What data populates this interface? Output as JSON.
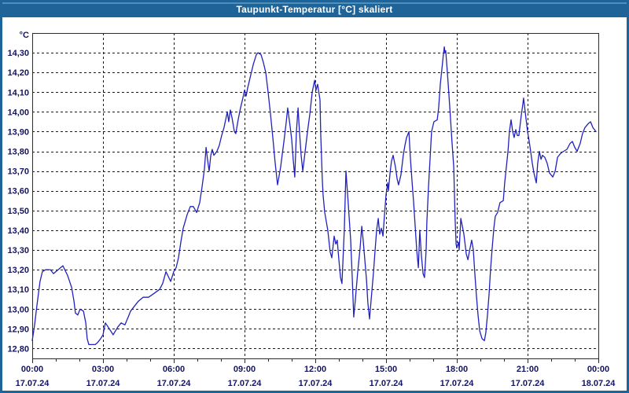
{
  "window": {
    "title": "Taupunkt-Temperatur [°C] skaliert"
  },
  "colors": {
    "frame": "#1f6499",
    "titlebar": "#1f6499",
    "titlebar_highlight": "#4e8fbc",
    "title_text": "#ffffff",
    "background": "#ffffff",
    "plot_border": "#2b2b2b",
    "grid": "#1a1a1a",
    "tick": "#2b2b2b",
    "label_text": "#14145f",
    "line": "#2121bd"
  },
  "chart_data": {
    "type": "line",
    "title": "Taupunkt-Temperatur [°C] skaliert",
    "unit_label": "°C",
    "xlabel": "",
    "ylabel": "°C",
    "grid": "dashed",
    "legend": "none",
    "ylim": [
      12.75,
      14.4
    ],
    "xlim_hours": [
      0,
      24
    ],
    "minor_tick_hours": 1,
    "y_ticks": [
      {
        "v": 14.3,
        "label": "14,30"
      },
      {
        "v": 14.2,
        "label": "14,20"
      },
      {
        "v": 14.1,
        "label": "14,10"
      },
      {
        "v": 14.0,
        "label": "14,00"
      },
      {
        "v": 13.9,
        "label": "13,90"
      },
      {
        "v": 13.8,
        "label": "13,80"
      },
      {
        "v": 13.7,
        "label": "13,70"
      },
      {
        "v": 13.6,
        "label": "13,60"
      },
      {
        "v": 13.5,
        "label": "13,50"
      },
      {
        "v": 13.4,
        "label": "13,40"
      },
      {
        "v": 13.3,
        "label": "13,30"
      },
      {
        "v": 13.2,
        "label": "13,20"
      },
      {
        "v": 13.1,
        "label": "13,10"
      },
      {
        "v": 13.0,
        "label": "13,00"
      },
      {
        "v": 12.9,
        "label": "12,90"
      },
      {
        "v": 12.8,
        "label": "12,80"
      }
    ],
    "x_ticks": [
      {
        "h": 0,
        "time": "00:00",
        "date": "17.07.24"
      },
      {
        "h": 3,
        "time": "03:00",
        "date": "17.07.24"
      },
      {
        "h": 6,
        "time": "06:00",
        "date": "17.07.24"
      },
      {
        "h": 9,
        "time": "09:00",
        "date": "17.07.24"
      },
      {
        "h": 12,
        "time": "12:00",
        "date": "17.07.24"
      },
      {
        "h": 15,
        "time": "15:00",
        "date": "17.07.24"
      },
      {
        "h": 18,
        "time": "18:00",
        "date": "17.07.24"
      },
      {
        "h": 21,
        "time": "21:00",
        "date": "17.07.24"
      },
      {
        "h": 24,
        "time": "00:00",
        "date": "18.07.24"
      }
    ],
    "series": [
      {
        "name": "Taupunkt-Temperatur",
        "color": "#2121bd",
        "points": [
          [
            0.0,
            12.84
          ],
          [
            0.1,
            12.92
          ],
          [
            0.2,
            13.02
          ],
          [
            0.33,
            13.14
          ],
          [
            0.43,
            13.19
          ],
          [
            0.57,
            13.2
          ],
          [
            0.77,
            13.2
          ],
          [
            0.9,
            13.18
          ],
          [
            1.1,
            13.2
          ],
          [
            1.3,
            13.22
          ],
          [
            1.5,
            13.17
          ],
          [
            1.67,
            13.11
          ],
          [
            1.77,
            13.04
          ],
          [
            1.83,
            12.98
          ],
          [
            1.93,
            12.97
          ],
          [
            2.03,
            13.0
          ],
          [
            2.17,
            12.99
          ],
          [
            2.27,
            12.93
          ],
          [
            2.33,
            12.85
          ],
          [
            2.4,
            12.82
          ],
          [
            2.67,
            12.82
          ],
          [
            2.77,
            12.83
          ],
          [
            2.9,
            12.85
          ],
          [
            3.0,
            12.87
          ],
          [
            3.1,
            12.93
          ],
          [
            3.27,
            12.9
          ],
          [
            3.43,
            12.87
          ],
          [
            3.63,
            12.91
          ],
          [
            3.77,
            12.93
          ],
          [
            3.93,
            12.92
          ],
          [
            4.07,
            12.96
          ],
          [
            4.17,
            12.99
          ],
          [
            4.3,
            13.01
          ],
          [
            4.5,
            13.04
          ],
          [
            4.7,
            13.06
          ],
          [
            4.93,
            13.06
          ],
          [
            5.17,
            13.08
          ],
          [
            5.4,
            13.1
          ],
          [
            5.53,
            13.13
          ],
          [
            5.67,
            13.19
          ],
          [
            5.87,
            13.14
          ],
          [
            6.0,
            13.19
          ],
          [
            6.1,
            13.21
          ],
          [
            6.2,
            13.26
          ],
          [
            6.3,
            13.34
          ],
          [
            6.4,
            13.41
          ],
          [
            6.57,
            13.48
          ],
          [
            6.7,
            13.52
          ],
          [
            6.83,
            13.52
          ],
          [
            6.97,
            13.49
          ],
          [
            7.1,
            13.54
          ],
          [
            7.2,
            13.62
          ],
          [
            7.3,
            13.71
          ],
          [
            7.37,
            13.82
          ],
          [
            7.43,
            13.76
          ],
          [
            7.5,
            13.7
          ],
          [
            7.57,
            13.78
          ],
          [
            7.63,
            13.81
          ],
          [
            7.7,
            13.78
          ],
          [
            7.83,
            13.8
          ],
          [
            7.93,
            13.83
          ],
          [
            8.03,
            13.88
          ],
          [
            8.13,
            13.92
          ],
          [
            8.2,
            13.96
          ],
          [
            8.27,
            14.0
          ],
          [
            8.33,
            13.95
          ],
          [
            8.4,
            14.01
          ],
          [
            8.47,
            13.97
          ],
          [
            8.57,
            13.9
          ],
          [
            8.63,
            13.89
          ],
          [
            8.73,
            13.96
          ],
          [
            8.83,
            14.02
          ],
          [
            8.93,
            14.07
          ],
          [
            9.0,
            14.11
          ],
          [
            9.07,
            14.08
          ],
          [
            9.13,
            14.12
          ],
          [
            9.23,
            14.17
          ],
          [
            9.37,
            14.24
          ],
          [
            9.5,
            14.29
          ],
          [
            9.57,
            14.3
          ],
          [
            9.7,
            14.29
          ],
          [
            9.8,
            14.25
          ],
          [
            9.9,
            14.2
          ],
          [
            10.0,
            14.1
          ],
          [
            10.1,
            13.99
          ],
          [
            10.2,
            13.87
          ],
          [
            10.3,
            13.74
          ],
          [
            10.4,
            13.63
          ],
          [
            10.53,
            13.72
          ],
          [
            10.67,
            13.85
          ],
          [
            10.77,
            13.95
          ],
          [
            10.83,
            14.02
          ],
          [
            10.93,
            13.93
          ],
          [
            11.0,
            13.86
          ],
          [
            11.07,
            13.75
          ],
          [
            11.13,
            13.67
          ],
          [
            11.2,
            13.9
          ],
          [
            11.27,
            14.02
          ],
          [
            11.33,
            13.9
          ],
          [
            11.4,
            13.78
          ],
          [
            11.47,
            13.7
          ],
          [
            11.57,
            13.8
          ],
          [
            11.67,
            13.9
          ],
          [
            11.77,
            13.99
          ],
          [
            11.87,
            14.1
          ],
          [
            11.97,
            14.16
          ],
          [
            12.03,
            14.11
          ],
          [
            12.1,
            14.14
          ],
          [
            12.2,
            14.06
          ],
          [
            12.23,
            13.89
          ],
          [
            12.3,
            13.65
          ],
          [
            12.33,
            13.58
          ],
          [
            12.4,
            13.49
          ],
          [
            12.53,
            13.4
          ],
          [
            12.63,
            13.29
          ],
          [
            12.7,
            13.26
          ],
          [
            12.8,
            13.37
          ],
          [
            12.87,
            13.33
          ],
          [
            12.93,
            13.35
          ],
          [
            13.0,
            13.25
          ],
          [
            13.07,
            13.16
          ],
          [
            13.13,
            13.13
          ],
          [
            13.23,
            13.4
          ],
          [
            13.3,
            13.7
          ],
          [
            13.4,
            13.53
          ],
          [
            13.5,
            13.35
          ],
          [
            13.57,
            13.15
          ],
          [
            13.63,
            12.96
          ],
          [
            13.7,
            13.05
          ],
          [
            13.8,
            13.19
          ],
          [
            13.9,
            13.31
          ],
          [
            13.97,
            13.42
          ],
          [
            14.03,
            13.35
          ],
          [
            14.1,
            13.25
          ],
          [
            14.17,
            13.15
          ],
          [
            14.23,
            13.03
          ],
          [
            14.3,
            12.95
          ],
          [
            14.37,
            13.05
          ],
          [
            14.47,
            13.19
          ],
          [
            14.53,
            13.29
          ],
          [
            14.6,
            13.4
          ],
          [
            14.67,
            13.46
          ],
          [
            14.73,
            13.38
          ],
          [
            14.8,
            13.41
          ],
          [
            14.87,
            13.37
          ],
          [
            14.93,
            13.47
          ],
          [
            15.0,
            13.58
          ],
          [
            15.07,
            13.64
          ],
          [
            15.1,
            13.6
          ],
          [
            15.17,
            13.69
          ],
          [
            15.23,
            13.75
          ],
          [
            15.3,
            13.78
          ],
          [
            15.4,
            13.72
          ],
          [
            15.47,
            13.66
          ],
          [
            15.53,
            13.63
          ],
          [
            15.63,
            13.68
          ],
          [
            15.73,
            13.78
          ],
          [
            15.8,
            13.83
          ],
          [
            15.87,
            13.87
          ],
          [
            15.97,
            13.9
          ],
          [
            16.03,
            13.77
          ],
          [
            16.1,
            13.65
          ],
          [
            16.17,
            13.54
          ],
          [
            16.23,
            13.43
          ],
          [
            16.3,
            13.3
          ],
          [
            16.37,
            13.21
          ],
          [
            16.43,
            13.4
          ],
          [
            16.5,
            13.27
          ],
          [
            16.57,
            13.18
          ],
          [
            16.63,
            13.16
          ],
          [
            16.7,
            13.3
          ],
          [
            16.73,
            13.44
          ],
          [
            16.8,
            13.62
          ],
          [
            16.87,
            13.77
          ],
          [
            16.93,
            13.9
          ],
          [
            17.03,
            13.95
          ],
          [
            17.17,
            13.96
          ],
          [
            17.23,
            14.02
          ],
          [
            17.3,
            14.14
          ],
          [
            17.37,
            14.22
          ],
          [
            17.43,
            14.29
          ],
          [
            17.47,
            14.33
          ],
          [
            17.5,
            14.3
          ],
          [
            17.53,
            14.31
          ],
          [
            17.6,
            14.2
          ],
          [
            17.67,
            14.08
          ],
          [
            17.73,
            13.97
          ],
          [
            17.8,
            13.84
          ],
          [
            17.87,
            13.72
          ],
          [
            17.93,
            13.45
          ],
          [
            17.97,
            13.33
          ],
          [
            18.0,
            13.31
          ],
          [
            18.07,
            13.34
          ],
          [
            18.1,
            13.3
          ],
          [
            18.17,
            13.46
          ],
          [
            18.3,
            13.38
          ],
          [
            18.4,
            13.28
          ],
          [
            18.47,
            13.25
          ],
          [
            18.53,
            13.29
          ],
          [
            18.63,
            13.35
          ],
          [
            18.7,
            13.3
          ],
          [
            18.77,
            13.17
          ],
          [
            18.83,
            13.07
          ],
          [
            18.9,
            12.97
          ],
          [
            18.97,
            12.89
          ],
          [
            19.07,
            12.85
          ],
          [
            19.17,
            12.84
          ],
          [
            19.23,
            12.88
          ],
          [
            19.3,
            12.97
          ],
          [
            19.37,
            13.08
          ],
          [
            19.43,
            13.2
          ],
          [
            19.5,
            13.31
          ],
          [
            19.57,
            13.41
          ],
          [
            19.63,
            13.47
          ],
          [
            19.73,
            13.49
          ],
          [
            19.83,
            13.54
          ],
          [
            19.97,
            13.55
          ],
          [
            20.03,
            13.64
          ],
          [
            20.1,
            13.72
          ],
          [
            20.17,
            13.8
          ],
          [
            20.23,
            13.9
          ],
          [
            20.3,
            13.96
          ],
          [
            20.37,
            13.9
          ],
          [
            20.43,
            13.87
          ],
          [
            20.5,
            13.91
          ],
          [
            20.57,
            13.88
          ],
          [
            20.63,
            13.88
          ],
          [
            20.73,
            13.98
          ],
          [
            20.8,
            14.04
          ],
          [
            20.83,
            14.07
          ],
          [
            20.9,
            14.0
          ],
          [
            21.0,
            13.9
          ],
          [
            21.07,
            13.85
          ],
          [
            21.13,
            13.8
          ],
          [
            21.2,
            13.74
          ],
          [
            21.27,
            13.69
          ],
          [
            21.37,
            13.64
          ],
          [
            21.43,
            13.74
          ],
          [
            21.5,
            13.8
          ],
          [
            21.57,
            13.76
          ],
          [
            21.63,
            13.78
          ],
          [
            21.73,
            13.77
          ],
          [
            21.83,
            13.74
          ],
          [
            21.93,
            13.69
          ],
          [
            22.07,
            13.67
          ],
          [
            22.17,
            13.7
          ],
          [
            22.27,
            13.77
          ],
          [
            22.4,
            13.79
          ],
          [
            22.53,
            13.8
          ],
          [
            22.67,
            13.81
          ],
          [
            22.8,
            13.84
          ],
          [
            22.9,
            13.85
          ],
          [
            23.0,
            13.82
          ],
          [
            23.1,
            13.8
          ],
          [
            23.23,
            13.84
          ],
          [
            23.33,
            13.89
          ],
          [
            23.43,
            13.92
          ],
          [
            23.57,
            13.94
          ],
          [
            23.67,
            13.95
          ],
          [
            23.77,
            13.92
          ],
          [
            23.9,
            13.9
          ]
        ]
      }
    ]
  }
}
